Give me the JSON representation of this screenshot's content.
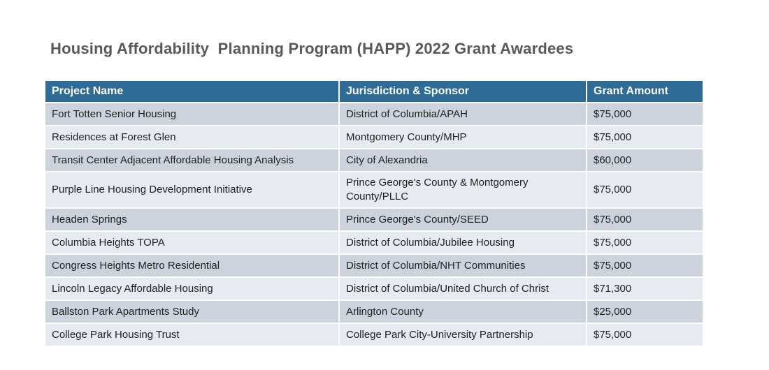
{
  "title": "Housing Affordability  Planning Program (HAPP) 2022 Grant Awardees",
  "colors": {
    "header_bg": "#2E6B96",
    "row_dark": "#CDD3DD",
    "row_light": "#E7EAF0",
    "title_text": "#595959",
    "cell_text": "#212121",
    "grid_line": "#FFFFFF"
  },
  "table": {
    "columns": [
      "Project Name",
      "Jurisdiction & Sponsor",
      "Grant Amount"
    ],
    "rows": [
      {
        "project": "Fort Totten Senior Housing",
        "jurisdiction": "District of Columbia/APAH",
        "amount": "$75,000"
      },
      {
        "project": "Residences at Forest Glen",
        "jurisdiction": "Montgomery County/MHP",
        "amount": "$75,000"
      },
      {
        "project": "Transit Center Adjacent Affordable Housing Analysis",
        "jurisdiction": "City of Alexandria",
        "amount": "$60,000"
      },
      {
        "project": "Purple Line Housing Development Initiative",
        "jurisdiction": "Prince George's County & Montgomery County/PLLC",
        "amount": "$75,000"
      },
      {
        "project": "Headen Springs",
        "jurisdiction": "Prince George's County/SEED",
        "amount": "$75,000"
      },
      {
        "project": "Columbia Heights TOPA",
        "jurisdiction": "District of Columbia/Jubilee Housing",
        "amount": "$75,000"
      },
      {
        "project": "Congress Heights Metro Residential",
        "jurisdiction": "District of Columbia/NHT Communities",
        "amount": "$75,000"
      },
      {
        "project": "Lincoln Legacy Affordable Housing",
        "jurisdiction": "District of Columbia/United Church of Christ",
        "amount": "$71,300"
      },
      {
        "project": "Ballston Park Apartments Study",
        "jurisdiction": "Arlington County",
        "amount": "$25,000"
      },
      {
        "project": "College Park Housing Trust",
        "jurisdiction": "College Park City-University Partnership",
        "amount": "$75,000"
      }
    ]
  }
}
